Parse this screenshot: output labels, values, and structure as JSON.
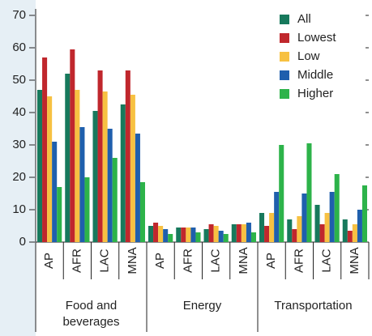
{
  "chart_data": {
    "type": "bar",
    "groups": [
      "Food and beverages",
      "Energy",
      "Transportation"
    ],
    "categories": [
      "AP",
      "AFR",
      "LAC",
      "MNA",
      "AP",
      "AFR",
      "LAC",
      "MNA",
      "AP",
      "AFR",
      "LAC",
      "MNA"
    ],
    "series": [
      {
        "name": "All",
        "color": "#17795c",
        "values": [
          47,
          52,
          40.5,
          42.5,
          5,
          4.5,
          4,
          5.5,
          9,
          7,
          11.5,
          7
        ]
      },
      {
        "name": "Lowest",
        "color": "#c0272d",
        "values": [
          57,
          59.5,
          53,
          53,
          6,
          4.5,
          5.5,
          5.5,
          5,
          4,
          5.5,
          3.5
        ]
      },
      {
        "name": "Low",
        "color": "#f7c142",
        "values": [
          45,
          47,
          46.5,
          45.5,
          5,
          4.5,
          5,
          5.5,
          9,
          8,
          9,
          5.5
        ]
      },
      {
        "name": "Middle",
        "color": "#1f5fad",
        "values": [
          31,
          35.5,
          35,
          33.5,
          4,
          4.5,
          3.5,
          6,
          15.5,
          15,
          15.5,
          10
        ]
      },
      {
        "name": "Higher",
        "color": "#2db34a",
        "values": [
          17,
          20,
          26,
          18.5,
          2.5,
          3,
          2.5,
          3,
          30,
          30.5,
          21,
          17.5
        ]
      }
    ],
    "ylim": [
      0,
      70
    ],
    "yticks": [
      0,
      10,
      20,
      30,
      40,
      50,
      60,
      70
    ],
    "legend": "top-right"
  }
}
